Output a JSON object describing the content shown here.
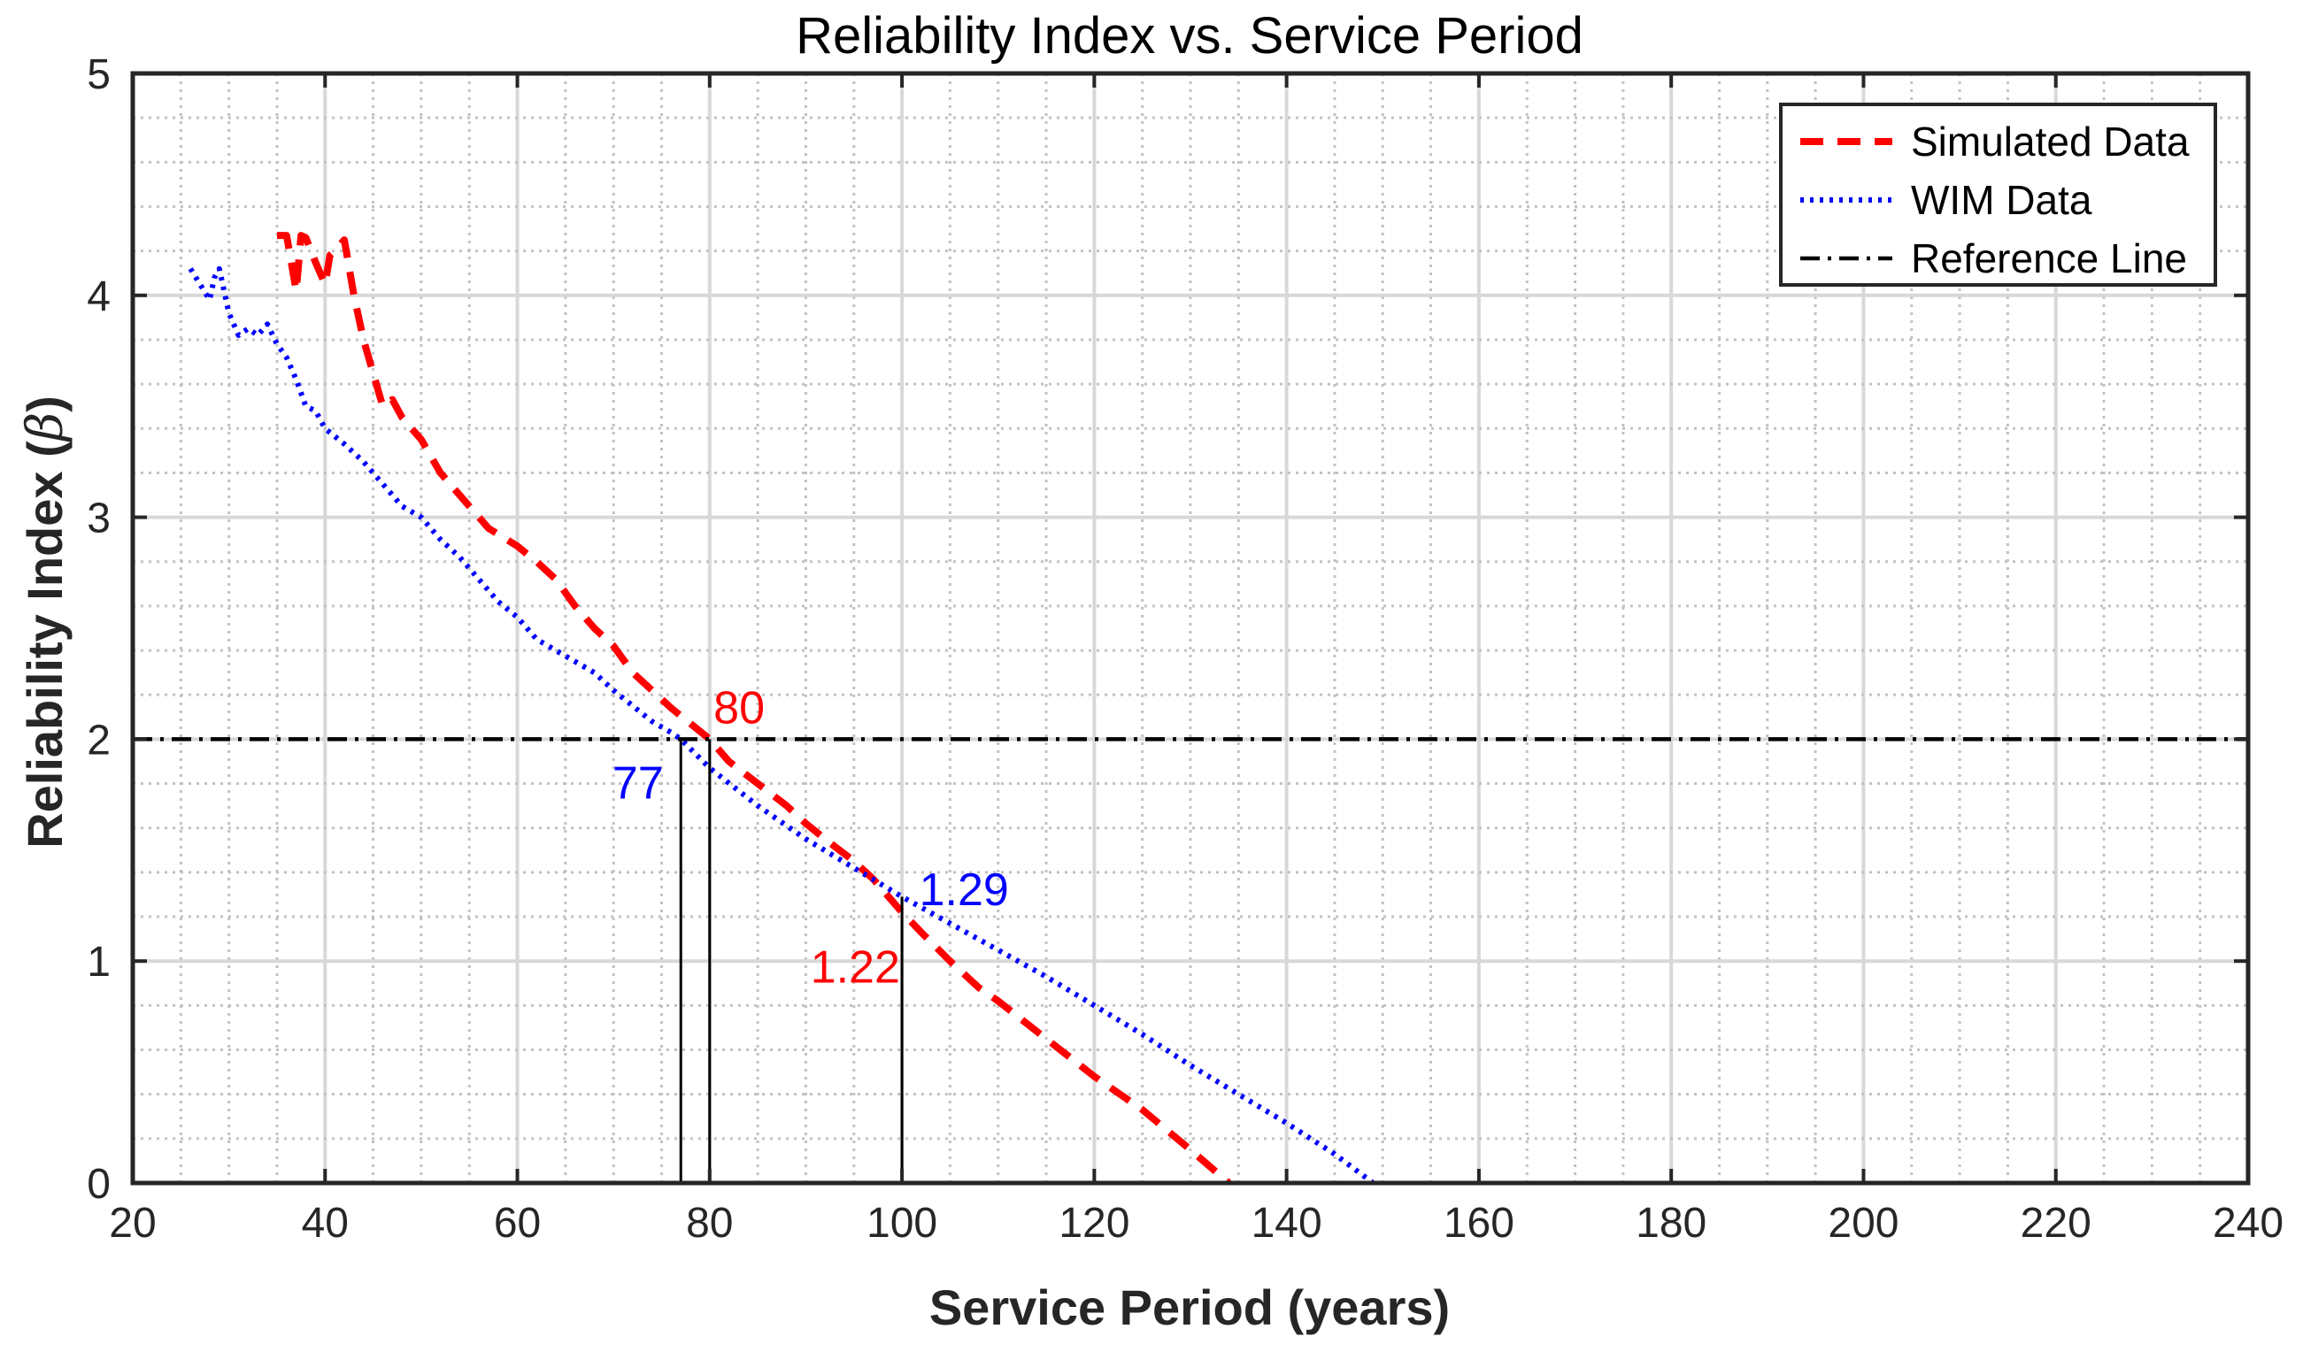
{
  "chart_data": {
    "type": "line",
    "title": "Reliability Index vs. Service Period",
    "xlabel": "Service Period (years)",
    "ylabel_main": "Reliability Index (",
    "ylabel_symbol": "β",
    "ylabel_end": ")",
    "xlim": [
      20,
      240
    ],
    "ylim": [
      0,
      5
    ],
    "xticks": [
      20,
      40,
      60,
      80,
      100,
      120,
      140,
      160,
      180,
      200,
      220,
      240
    ],
    "yticks": [
      0,
      1,
      2,
      3,
      4,
      5
    ],
    "grid": true,
    "minor_grid": true,
    "legend_position": "top-right",
    "series": [
      {
        "name": "Simulated Data",
        "color": "#ff0000",
        "style": "dashed",
        "x": [
          35,
          36,
          37,
          37.5,
          38,
          39,
          40,
          40.5,
          41,
          42,
          43,
          44,
          45,
          46,
          47,
          48,
          50,
          52,
          55,
          57,
          60,
          62,
          64,
          66,
          68,
          70,
          72,
          74,
          76,
          78,
          80,
          82,
          85,
          88,
          90,
          92,
          95,
          97,
          100,
          102,
          105,
          108,
          110,
          115,
          120,
          125,
          130,
          134
        ],
        "y": [
          4.27,
          4.27,
          4.02,
          4.27,
          4.26,
          4.15,
          4.05,
          4.18,
          4.2,
          4.25,
          4.0,
          3.8,
          3.65,
          3.5,
          3.53,
          3.45,
          3.35,
          3.2,
          3.05,
          2.95,
          2.87,
          2.8,
          2.72,
          2.6,
          2.5,
          2.42,
          2.3,
          2.22,
          2.14,
          2.07,
          2.0,
          1.9,
          1.8,
          1.7,
          1.62,
          1.55,
          1.45,
          1.37,
          1.22,
          1.13,
          1.0,
          0.88,
          0.82,
          0.65,
          0.48,
          0.33,
          0.15,
          0.0
        ]
      },
      {
        "name": "WIM Data",
        "color": "#0000ff",
        "style": "dotted",
        "x": [
          26,
          27,
          28,
          28.5,
          29,
          30,
          31,
          32,
          33,
          34,
          35,
          36,
          37,
          38,
          39,
          40,
          42,
          44,
          46,
          48,
          50,
          52,
          54,
          56,
          58,
          60,
          62,
          64,
          66,
          68,
          70,
          72,
          74,
          76,
          77,
          80,
          85,
          90,
          95,
          100,
          105,
          110,
          115,
          120,
          125,
          130,
          135,
          140,
          145,
          149
        ],
        "y": [
          4.12,
          4.05,
          3.98,
          4.08,
          4.12,
          3.92,
          3.82,
          3.85,
          3.82,
          3.87,
          3.78,
          3.72,
          3.62,
          3.5,
          3.48,
          3.4,
          3.33,
          3.25,
          3.15,
          3.05,
          3.0,
          2.9,
          2.82,
          2.72,
          2.62,
          2.55,
          2.45,
          2.4,
          2.35,
          2.3,
          2.22,
          2.15,
          2.08,
          2.03,
          2.0,
          1.87,
          1.7,
          1.55,
          1.42,
          1.29,
          1.17,
          1.05,
          0.93,
          0.8,
          0.67,
          0.53,
          0.4,
          0.27,
          0.13,
          0.0
        ]
      },
      {
        "name": "Reference Line",
        "color": "#000000",
        "style": "dashdot",
        "x": [
          20,
          240
        ],
        "y": [
          2,
          2
        ]
      }
    ],
    "verticals": [
      {
        "x": 77,
        "y": 2.0
      },
      {
        "x": 80,
        "y": 2.0
      },
      {
        "x": 100,
        "y": 1.29
      }
    ],
    "annotations": [
      {
        "text": "80",
        "x": 80,
        "y": 2.0,
        "color": "#ff0000",
        "anchor": "start",
        "dx": 0.4,
        "dy": 0.14
      },
      {
        "text": "77",
        "x": 77,
        "y": 2.0,
        "color": "#0000ff",
        "anchor": "end",
        "dx": -1.8,
        "dy": -0.2
      },
      {
        "text": "1.29",
        "x": 100,
        "y": 1.29,
        "color": "#0000ff",
        "anchor": "start",
        "dx": 1.8,
        "dy": 0.03
      },
      {
        "text": "1.22",
        "x": 100,
        "y": 1.22,
        "color": "#ff0000",
        "anchor": "end",
        "dx": -0.2,
        "dy": -0.25
      }
    ]
  }
}
